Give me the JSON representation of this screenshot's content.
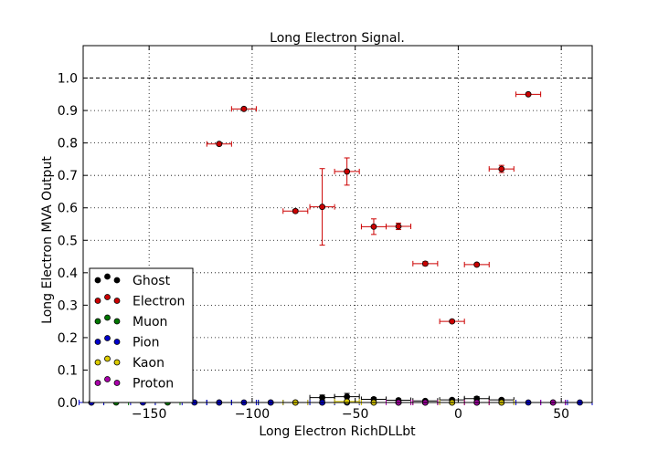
{
  "chart_data": {
    "type": "scatter",
    "title": "Long Electron Signal.",
    "xlabel": "Long Electron RichDLLbt",
    "ylabel": "Long Electron MVA Output",
    "xlim": [
      -182,
      65
    ],
    "ylim": [
      0,
      1.1
    ],
    "xticks": [
      -150,
      -100,
      -50,
      0,
      50
    ],
    "xtick_labels": [
      "−150",
      "−100",
      "−50",
      "0",
      "50"
    ],
    "yticks": [
      0.0,
      0.1,
      0.2,
      0.3,
      0.4,
      0.5,
      0.6,
      0.7,
      0.8,
      0.9,
      1.0
    ],
    "ytick_labels": [
      "0.0",
      "0.1",
      "0.2",
      "0.3",
      "0.4",
      "0.5",
      "0.6",
      "0.7",
      "0.8",
      "0.9",
      "1.0"
    ],
    "reference_line": 1.0,
    "grid": true,
    "legend_position": "lower-left",
    "series": [
      {
        "name": "Ghost",
        "color": "#000000",
        "err_color": "#000000",
        "xerr": 6,
        "x": [
          -66,
          -54,
          -41,
          -29,
          -16,
          -3,
          9,
          21
        ],
        "y": [
          0.015,
          0.018,
          0.01,
          0.007,
          0.005,
          0.008,
          0.012,
          0.008
        ],
        "yerr": [
          0.008,
          0.01,
          0.005,
          0.004,
          0.003,
          0.004,
          0.006,
          0.004
        ]
      },
      {
        "name": "Electron",
        "color": "#cc0000",
        "err_color": "#cc0000",
        "xerr": 6,
        "x": [
          -116,
          -104,
          -79,
          -66,
          -54,
          -41,
          -29,
          -16,
          -3,
          9,
          21,
          34
        ],
        "y": [
          0.797,
          0.905,
          0.59,
          0.603,
          0.712,
          0.542,
          0.543,
          0.428,
          0.25,
          0.425,
          0.72,
          0.95
        ],
        "yerr": [
          0.004,
          0.004,
          0.005,
          0.118,
          0.042,
          0.024,
          0.01,
          0.006,
          0.004,
          0.004,
          0.011,
          0.003
        ]
      },
      {
        "name": "Muon",
        "color": "#007700",
        "err_color": "#007700",
        "xerr": 6,
        "x": [
          -178,
          -166,
          -141,
          -116,
          -91,
          -66
        ],
        "y": [
          0,
          0,
          0,
          0,
          0,
          0
        ],
        "yerr": [
          0,
          0,
          0,
          0,
          0,
          0
        ]
      },
      {
        "name": "Pion",
        "color": "#0000cc",
        "err_color": "#0000cc",
        "xerr": 6,
        "x": [
          -178,
          -153,
          -128,
          -116,
          -104,
          -91,
          -79,
          -66,
          -54,
          -41,
          -29,
          -16,
          -3,
          9,
          21,
          34,
          46,
          59
        ],
        "y": [
          0,
          0,
          0,
          0,
          0,
          0,
          0,
          0,
          0,
          0,
          0,
          0,
          0,
          0,
          0,
          0,
          0,
          0
        ],
        "yerr": [
          0,
          0,
          0,
          0,
          0,
          0,
          0,
          0,
          0,
          0,
          0,
          0,
          0,
          0,
          0,
          0,
          0,
          0
        ]
      },
      {
        "name": "Kaon",
        "color": "#ddcc00",
        "err_color": "#ddcc00",
        "xerr": 6,
        "x": [
          -79,
          -54,
          -41,
          -29,
          -16,
          -3,
          9,
          21
        ],
        "y": [
          0,
          0.003,
          0,
          0,
          0,
          0,
          0,
          0
        ],
        "yerr": [
          0,
          0.003,
          0,
          0,
          0,
          0,
          0,
          0
        ]
      },
      {
        "name": "Proton",
        "color": "#aa00aa",
        "err_color": "#aa00aa",
        "xerr": 6,
        "x": [
          -29,
          -16,
          9,
          46
        ],
        "y": [
          0,
          0,
          0,
          0
        ],
        "yerr": [
          0,
          0,
          0,
          0
        ]
      }
    ]
  }
}
